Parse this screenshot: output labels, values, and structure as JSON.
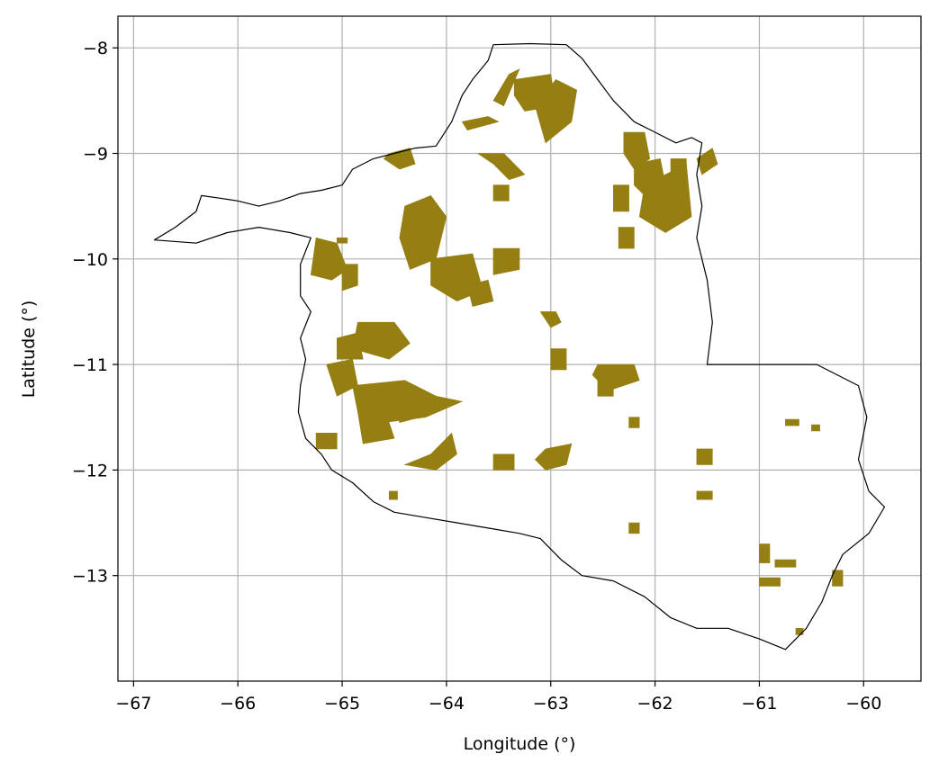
{
  "axes": {
    "xlabel": "Longitude (°)",
    "ylabel": "Latitude (°)",
    "xlim": [
      -67.15,
      -59.45
    ],
    "ylim": [
      -14.0,
      -7.7
    ],
    "grid": true,
    "xticks": [
      {
        "value": -67,
        "label": "−67"
      },
      {
        "value": -66,
        "label": "−66"
      },
      {
        "value": -65,
        "label": "−65"
      },
      {
        "value": -64,
        "label": "−64"
      },
      {
        "value": -63,
        "label": "−63"
      },
      {
        "value": -62,
        "label": "−62"
      },
      {
        "value": -61,
        "label": "−61"
      },
      {
        "value": -60,
        "label": "−60"
      }
    ],
    "yticks": [
      {
        "value": -8,
        "label": "−8"
      },
      {
        "value": -9,
        "label": "−9"
      },
      {
        "value": -10,
        "label": "−10"
      },
      {
        "value": -11,
        "label": "−11"
      },
      {
        "value": -12,
        "label": "−12"
      },
      {
        "value": -13,
        "label": "−13"
      }
    ]
  },
  "colors": {
    "area_fill": "#957f12",
    "boundary": "#000000",
    "grid": "#b0b0b0",
    "background": "#ffffff"
  },
  "map_data": {
    "boundary": [
      [
        -66.8,
        -9.82
      ],
      [
        -66.6,
        -9.7
      ],
      [
        -66.4,
        -9.55
      ],
      [
        -66.35,
        -9.4
      ],
      [
        -66.2,
        -9.42
      ],
      [
        -66.0,
        -9.45
      ],
      [
        -65.8,
        -9.5
      ],
      [
        -65.6,
        -9.45
      ],
      [
        -65.4,
        -9.38
      ],
      [
        -65.2,
        -9.35
      ],
      [
        -65.0,
        -9.3
      ],
      [
        -64.9,
        -9.15
      ],
      [
        -64.7,
        -9.05
      ],
      [
        -64.5,
        -9.0
      ],
      [
        -64.3,
        -8.95
      ],
      [
        -64.1,
        -8.93
      ],
      [
        -63.95,
        -8.7
      ],
      [
        -63.85,
        -8.45
      ],
      [
        -63.75,
        -8.3
      ],
      [
        -63.6,
        -8.12
      ],
      [
        -63.55,
        -7.97
      ],
      [
        -63.2,
        -7.96
      ],
      [
        -62.85,
        -7.97
      ],
      [
        -62.7,
        -8.1
      ],
      [
        -62.55,
        -8.3
      ],
      [
        -62.4,
        -8.5
      ],
      [
        -62.2,
        -8.7
      ],
      [
        -62.0,
        -8.8
      ],
      [
        -61.8,
        -8.9
      ],
      [
        -61.65,
        -8.85
      ],
      [
        -61.55,
        -8.9
      ],
      [
        -61.6,
        -9.2
      ],
      [
        -61.55,
        -9.5
      ],
      [
        -61.6,
        -9.8
      ],
      [
        -61.5,
        -10.2
      ],
      [
        -61.45,
        -10.6
      ],
      [
        -61.5,
        -11.0
      ],
      [
        -60.45,
        -11.0
      ],
      [
        -60.05,
        -11.2
      ],
      [
        -59.97,
        -11.5
      ],
      [
        -60.05,
        -11.9
      ],
      [
        -59.95,
        -12.2
      ],
      [
        -59.8,
        -12.35
      ],
      [
        -59.95,
        -12.6
      ],
      [
        -60.2,
        -12.8
      ],
      [
        -60.3,
        -13.0
      ],
      [
        -60.4,
        -13.25
      ],
      [
        -60.55,
        -13.5
      ],
      [
        -60.75,
        -13.7
      ],
      [
        -61.0,
        -13.6
      ],
      [
        -61.3,
        -13.5
      ],
      [
        -61.6,
        -13.5
      ],
      [
        -61.85,
        -13.4
      ],
      [
        -62.1,
        -13.2
      ],
      [
        -62.4,
        -13.05
      ],
      [
        -62.7,
        -13.0
      ],
      [
        -62.9,
        -12.85
      ],
      [
        -63.1,
        -12.65
      ],
      [
        -63.3,
        -12.6
      ],
      [
        -63.6,
        -12.55
      ],
      [
        -63.9,
        -12.5
      ],
      [
        -64.2,
        -12.45
      ],
      [
        -64.5,
        -12.4
      ],
      [
        -64.7,
        -12.3
      ],
      [
        -64.9,
        -12.12
      ],
      [
        -65.1,
        -12.0
      ],
      [
        -65.2,
        -11.85
      ],
      [
        -65.35,
        -11.7
      ],
      [
        -65.42,
        -11.45
      ],
      [
        -65.4,
        -11.2
      ],
      [
        -65.35,
        -10.95
      ],
      [
        -65.4,
        -10.75
      ],
      [
        -65.3,
        -10.5
      ],
      [
        -65.4,
        -10.35
      ],
      [
        -65.4,
        -10.05
      ],
      [
        -65.3,
        -9.8
      ],
      [
        -65.5,
        -9.75
      ],
      [
        -65.8,
        -9.7
      ],
      [
        -66.1,
        -9.75
      ],
      [
        -66.4,
        -9.85
      ]
    ],
    "areas": [
      [
        [
          -62.95,
          -8.3
        ],
        [
          -62.75,
          -8.4
        ],
        [
          -62.8,
          -8.7
        ],
        [
          -63.05,
          -8.9
        ],
        [
          -63.15,
          -8.55
        ]
      ],
      [
        [
          -63.35,
          -8.3
        ],
        [
          -63.0,
          -8.25
        ],
        [
          -62.95,
          -8.55
        ],
        [
          -63.25,
          -8.6
        ],
        [
          -63.35,
          -8.45
        ]
      ],
      [
        [
          -63.55,
          -8.5
        ],
        [
          -63.4,
          -8.25
        ],
        [
          -63.3,
          -8.2
        ],
        [
          -63.45,
          -8.55
        ]
      ],
      [
        [
          -63.85,
          -8.7
        ],
        [
          -63.6,
          -8.65
        ],
        [
          -63.5,
          -8.7
        ],
        [
          -63.8,
          -8.78
        ]
      ],
      [
        [
          -63.7,
          -9.0
        ],
        [
          -63.45,
          -9.0
        ],
        [
          -63.25,
          -9.2
        ],
        [
          -63.4,
          -9.25
        ],
        [
          -63.55,
          -9.1
        ]
      ],
      [
        [
          -63.55,
          -9.3
        ],
        [
          -63.4,
          -9.3
        ],
        [
          -63.4,
          -9.45
        ],
        [
          -63.55,
          -9.45
        ]
      ],
      [
        [
          -62.3,
          -8.8
        ],
        [
          -62.1,
          -8.8
        ],
        [
          -62.05,
          -9.05
        ],
        [
          -62.2,
          -9.15
        ],
        [
          -62.3,
          -9.0
        ]
      ],
      [
        [
          -62.2,
          -9.1
        ],
        [
          -61.95,
          -9.05
        ],
        [
          -61.9,
          -9.3
        ],
        [
          -62.1,
          -9.4
        ],
        [
          -62.2,
          -9.3
        ]
      ],
      [
        [
          -62.1,
          -9.3
        ],
        [
          -61.7,
          -9.1
        ],
        [
          -61.65,
          -9.6
        ],
        [
          -61.9,
          -9.75
        ],
        [
          -62.15,
          -9.6
        ]
      ],
      [
        [
          -61.85,
          -9.05
        ],
        [
          -61.7,
          -9.05
        ],
        [
          -61.7,
          -9.25
        ],
        [
          -61.85,
          -9.25
        ]
      ],
      [
        [
          -61.6,
          -9.05
        ],
        [
          -61.45,
          -8.95
        ],
        [
          -61.4,
          -9.1
        ],
        [
          -61.55,
          -9.2
        ]
      ],
      [
        [
          -62.4,
          -9.3
        ],
        [
          -62.25,
          -9.3
        ],
        [
          -62.25,
          -9.55
        ],
        [
          -62.4,
          -9.55
        ]
      ],
      [
        [
          -62.35,
          -9.7
        ],
        [
          -62.2,
          -9.7
        ],
        [
          -62.2,
          -9.9
        ],
        [
          -62.35,
          -9.9
        ]
      ],
      [
        [
          -64.55,
          -9.0
        ],
        [
          -64.35,
          -8.95
        ],
        [
          -64.3,
          -9.1
        ],
        [
          -64.45,
          -9.15
        ],
        [
          -64.6,
          -9.05
        ]
      ],
      [
        [
          -64.4,
          -9.5
        ],
        [
          -64.15,
          -9.4
        ],
        [
          -64.0,
          -9.6
        ],
        [
          -64.1,
          -10.0
        ],
        [
          -64.35,
          -10.1
        ],
        [
          -64.45,
          -9.8
        ]
      ],
      [
        [
          -64.15,
          -10.0
        ],
        [
          -63.75,
          -9.95
        ],
        [
          -63.65,
          -10.3
        ],
        [
          -63.9,
          -10.4
        ],
        [
          -64.15,
          -10.25
        ]
      ],
      [
        [
          -63.8,
          -10.25
        ],
        [
          -63.6,
          -10.2
        ],
        [
          -63.55,
          -10.4
        ],
        [
          -63.75,
          -10.45
        ]
      ],
      [
        [
          -63.55,
          -9.9
        ],
        [
          -63.3,
          -9.9
        ],
        [
          -63.3,
          -10.1
        ],
        [
          -63.55,
          -10.15
        ]
      ],
      [
        [
          -65.25,
          -9.8
        ],
        [
          -65.05,
          -9.85
        ],
        [
          -64.95,
          -10.1
        ],
        [
          -65.1,
          -10.2
        ],
        [
          -65.3,
          -10.15
        ]
      ],
      [
        [
          -65.0,
          -10.05
        ],
        [
          -64.85,
          -10.05
        ],
        [
          -64.85,
          -10.25
        ],
        [
          -65.0,
          -10.3
        ]
      ],
      [
        [
          -64.85,
          -10.6
        ],
        [
          -64.5,
          -10.6
        ],
        [
          -64.35,
          -10.8
        ],
        [
          -64.55,
          -10.95
        ],
        [
          -64.9,
          -10.85
        ]
      ],
      [
        [
          -65.05,
          -10.75
        ],
        [
          -64.85,
          -10.7
        ],
        [
          -64.8,
          -10.95
        ],
        [
          -65.05,
          -10.95
        ]
      ],
      [
        [
          -65.15,
          -11.0
        ],
        [
          -64.9,
          -10.95
        ],
        [
          -64.85,
          -11.2
        ],
        [
          -65.05,
          -11.3
        ]
      ],
      [
        [
          -64.9,
          -11.2
        ],
        [
          -64.4,
          -11.15
        ],
        [
          -64.1,
          -11.3
        ],
        [
          -63.85,
          -11.35
        ],
        [
          -64.2,
          -11.5
        ],
        [
          -64.6,
          -11.55
        ],
        [
          -64.85,
          -11.45
        ]
      ],
      [
        [
          -64.85,
          -11.45
        ],
        [
          -64.55,
          -11.55
        ],
        [
          -64.5,
          -11.7
        ],
        [
          -64.8,
          -11.75
        ]
      ],
      [
        [
          -64.5,
          -11.3
        ],
        [
          -64.3,
          -11.2
        ],
        [
          -64.25,
          -11.5
        ],
        [
          -64.45,
          -11.55
        ]
      ],
      [
        [
          -65.25,
          -11.65
        ],
        [
          -65.05,
          -11.65
        ],
        [
          -65.05,
          -11.8
        ],
        [
          -65.25,
          -11.8
        ]
      ],
      [
        [
          -64.15,
          -11.85
        ],
        [
          -63.95,
          -11.65
        ],
        [
          -63.9,
          -11.85
        ],
        [
          -64.1,
          -12.0
        ],
        [
          -64.4,
          -11.95
        ]
      ],
      [
        [
          -63.55,
          -11.85
        ],
        [
          -63.35,
          -11.85
        ],
        [
          -63.35,
          -12.0
        ],
        [
          -63.55,
          -12.0
        ]
      ],
      [
        [
          -63.05,
          -11.8
        ],
        [
          -62.8,
          -11.75
        ],
        [
          -62.85,
          -11.95
        ],
        [
          -63.05,
          -12.0
        ],
        [
          -63.15,
          -11.9
        ]
      ],
      [
        [
          -63.1,
          -10.5
        ],
        [
          -62.95,
          -10.5
        ],
        [
          -62.9,
          -10.6
        ],
        [
          -63.0,
          -10.65
        ]
      ],
      [
        [
          -63.0,
          -10.85
        ],
        [
          -62.85,
          -10.85
        ],
        [
          -62.85,
          -11.05
        ],
        [
          -63.0,
          -11.05
        ]
      ],
      [
        [
          -62.55,
          -11.0
        ],
        [
          -62.2,
          -11.0
        ],
        [
          -62.15,
          -11.15
        ],
        [
          -62.45,
          -11.25
        ],
        [
          -62.6,
          -11.1
        ]
      ],
      [
        [
          -62.55,
          -11.15
        ],
        [
          -62.4,
          -11.15
        ],
        [
          -62.4,
          -11.3
        ],
        [
          -62.55,
          -11.3
        ]
      ],
      [
        [
          -61.6,
          -11.8
        ],
        [
          -61.45,
          -11.8
        ],
        [
          -61.45,
          -11.95
        ],
        [
          -61.6,
          -11.95
        ]
      ],
      [
        [
          -61.6,
          -12.2
        ],
        [
          -61.45,
          -12.2
        ],
        [
          -61.45,
          -12.28
        ],
        [
          -61.6,
          -12.28
        ]
      ],
      [
        [
          -61.0,
          -12.7
        ],
        [
          -60.9,
          -12.7
        ],
        [
          -60.9,
          -12.88
        ],
        [
          -61.0,
          -12.88
        ]
      ],
      [
        [
          -60.85,
          -12.85
        ],
        [
          -60.65,
          -12.85
        ],
        [
          -60.65,
          -12.92
        ],
        [
          -60.85,
          -12.92
        ]
      ],
      [
        [
          -61.0,
          -13.02
        ],
        [
          -60.8,
          -13.02
        ],
        [
          -60.8,
          -13.1
        ],
        [
          -61.0,
          -13.1
        ]
      ],
      [
        [
          -60.3,
          -12.95
        ],
        [
          -60.2,
          -12.95
        ],
        [
          -60.2,
          -13.1
        ],
        [
          -60.3,
          -13.1
        ]
      ],
      [
        [
          -60.65,
          -13.5
        ],
        [
          -60.58,
          -13.5
        ],
        [
          -60.58,
          -13.56
        ],
        [
          -60.65,
          -13.56
        ]
      ],
      [
        [
          -60.75,
          -11.52
        ],
        [
          -60.62,
          -11.52
        ],
        [
          -60.62,
          -11.58
        ],
        [
          -60.75,
          -11.58
        ]
      ],
      [
        [
          -60.5,
          -11.57
        ],
        [
          -60.42,
          -11.57
        ],
        [
          -60.42,
          -11.63
        ],
        [
          -60.5,
          -11.63
        ]
      ],
      [
        [
          -62.25,
          -12.5
        ],
        [
          -62.15,
          -12.5
        ],
        [
          -62.15,
          -12.6
        ],
        [
          -62.25,
          -12.6
        ]
      ],
      [
        [
          -62.25,
          -11.5
        ],
        [
          -62.15,
          -11.5
        ],
        [
          -62.15,
          -11.6
        ],
        [
          -62.25,
          -11.6
        ]
      ],
      [
        [
          -64.55,
          -12.2
        ],
        [
          -64.47,
          -12.2
        ],
        [
          -64.47,
          -12.28
        ],
        [
          -64.55,
          -12.28
        ]
      ],
      [
        [
          -65.05,
          -9.8
        ],
        [
          -64.95,
          -9.8
        ],
        [
          -64.95,
          -9.85
        ],
        [
          -65.05,
          -9.85
        ]
      ]
    ]
  }
}
